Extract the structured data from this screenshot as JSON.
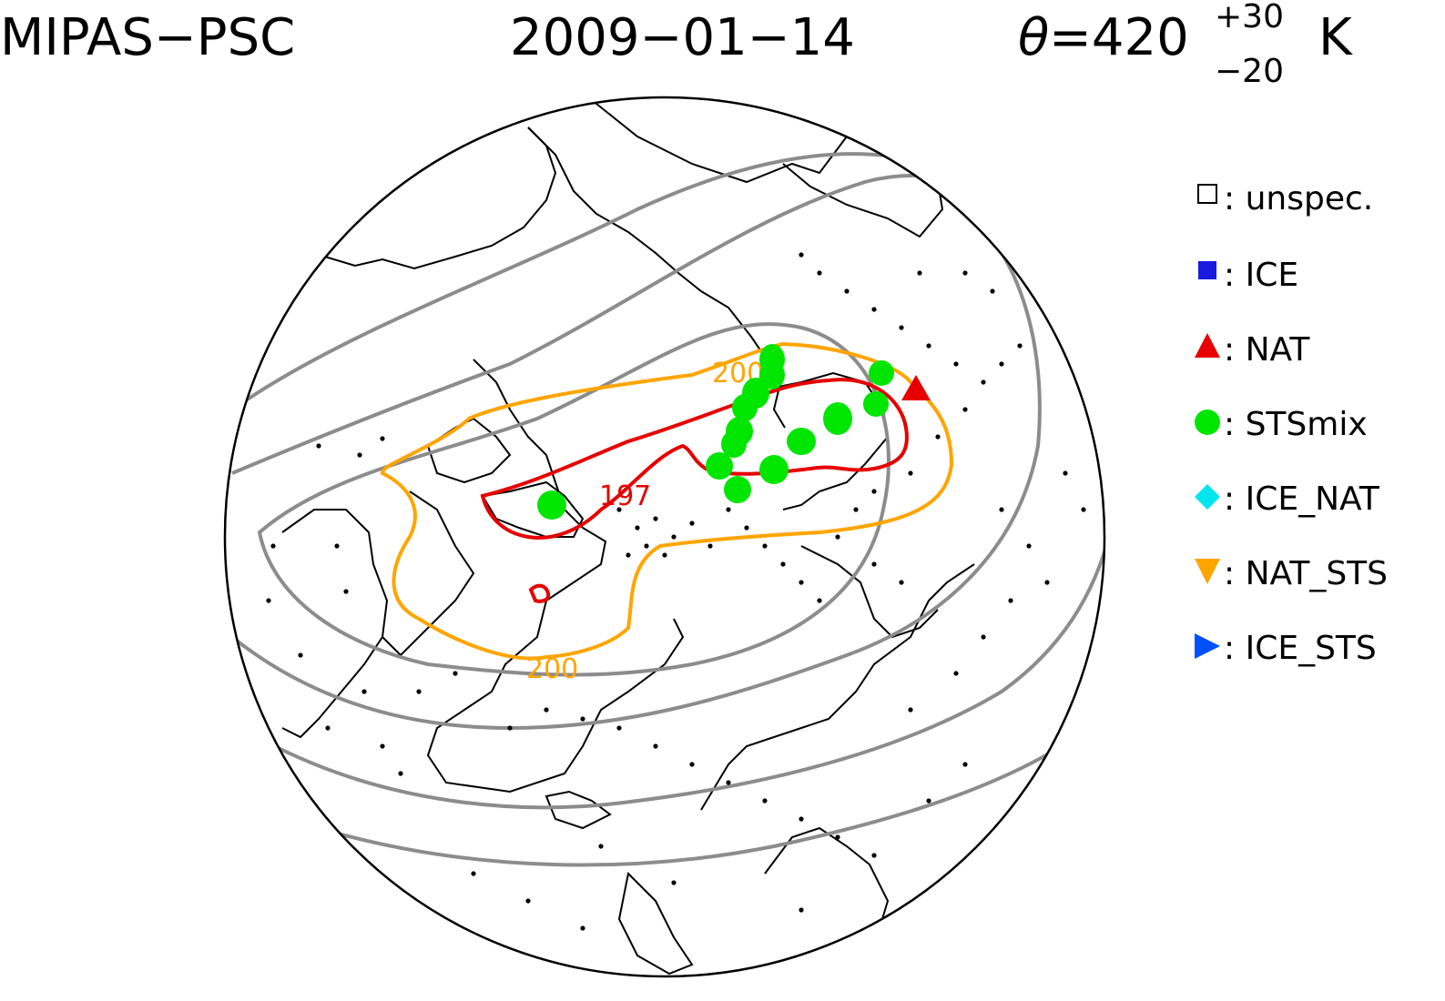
{
  "header": {
    "instrument": "MIPAS−PSC",
    "date": "2009−01−14",
    "theta_symbol": "θ",
    "theta_value": "=420",
    "theta_upper": "+30",
    "theta_lower": "−20",
    "theta_unit": "K"
  },
  "contours": {
    "orange_label_top": "200",
    "orange_label_bottom": "200",
    "red_label": "197"
  },
  "colors": {
    "orange": "#ffa500",
    "red": "#e60000",
    "gray": "#8c8c8c",
    "green": "#00e600",
    "ice": "#1a1adf",
    "ice_nat": "#00e5ee",
    "ice_sts": "#0050ff"
  },
  "legend": [
    {
      "symbol": "open-square",
      "label": ": unspec."
    },
    {
      "symbol": "filled-square",
      "label": ": ICE"
    },
    {
      "symbol": "triangle-up",
      "label": ": NAT"
    },
    {
      "symbol": "circle",
      "label": ": STSmix"
    },
    {
      "symbol": "diamond",
      "label": ": ICE_NAT"
    },
    {
      "symbol": "triangle-down",
      "label": ": NAT_STS"
    },
    {
      "symbol": "triangle-right",
      "label": ": ICE_STS"
    }
  ]
}
